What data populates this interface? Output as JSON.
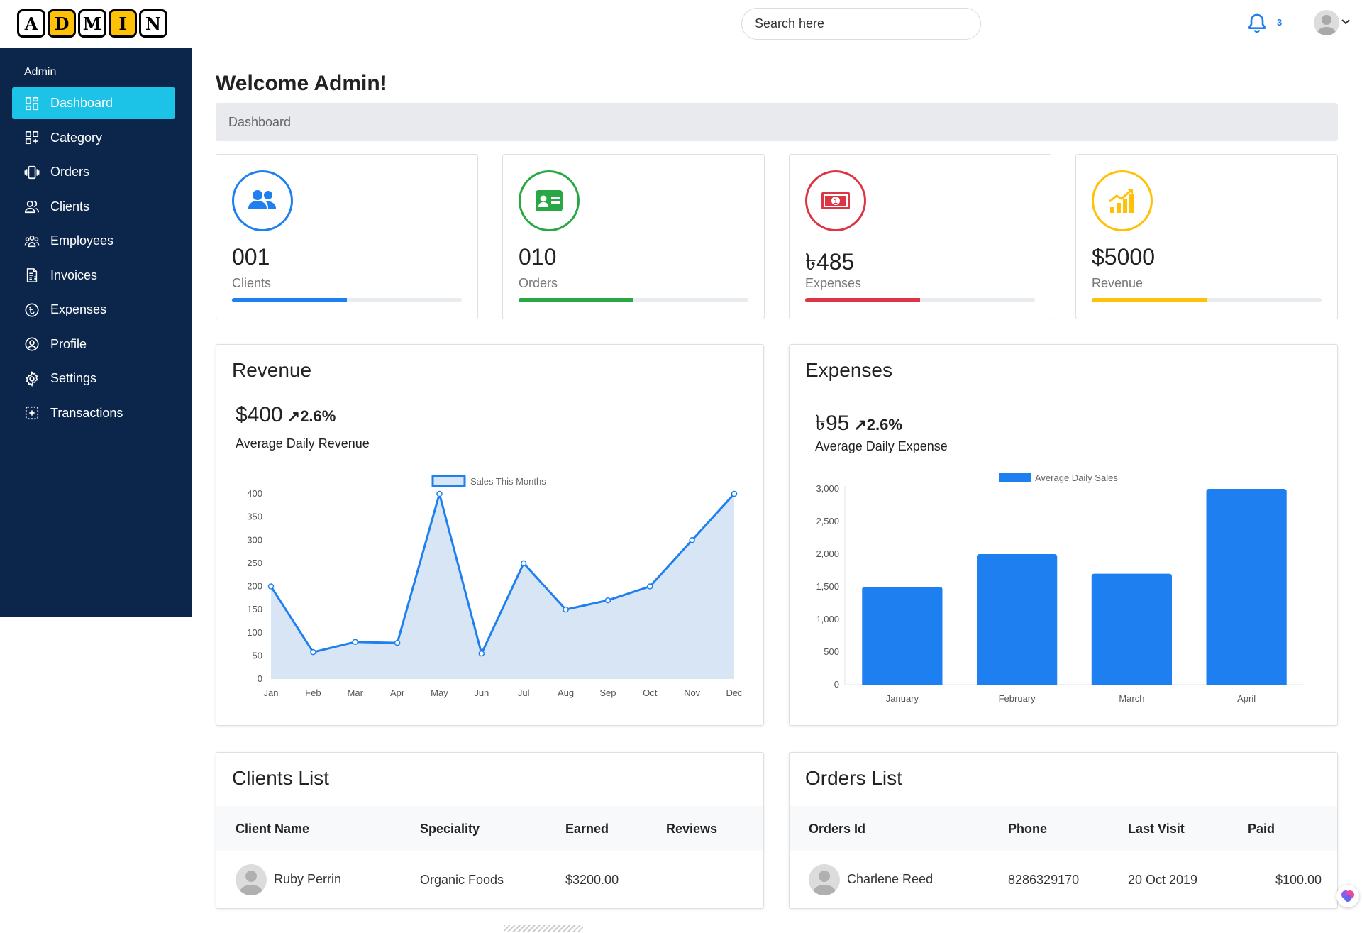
{
  "logo": {
    "letters": [
      "A",
      "D",
      "M",
      "I",
      "N"
    ]
  },
  "search": {
    "placeholder": "Search here"
  },
  "notifications": {
    "count": "3"
  },
  "sidebar": {
    "title": "Admin",
    "items": [
      {
        "label": "Dashboard",
        "icon": "dashboard-icon",
        "active": true
      },
      {
        "label": "Category",
        "icon": "category-icon"
      },
      {
        "label": "Orders",
        "icon": "orders-icon"
      },
      {
        "label": "Clients",
        "icon": "clients-icon"
      },
      {
        "label": "Employees",
        "icon": "employees-icon"
      },
      {
        "label": "Invoices",
        "icon": "invoices-icon"
      },
      {
        "label": "Expenses",
        "icon": "expenses-icon"
      },
      {
        "label": "Profile",
        "icon": "profile-icon"
      },
      {
        "label": "Settings",
        "icon": "gear-icon"
      },
      {
        "label": "Transactions",
        "icon": "transactions-icon"
      }
    ]
  },
  "main": {
    "title": "Welcome Admin!",
    "breadcrumb": "Dashboard"
  },
  "stats": [
    {
      "value": "001",
      "label": "Clients",
      "color": "#1e7ff0",
      "icon": "users-icon",
      "progress": 0.5
    },
    {
      "value": "010",
      "label": "Orders",
      "color": "#28a745",
      "icon": "id-card-icon",
      "progress": 0.5
    },
    {
      "value": "৳485",
      "label": "Expenses",
      "color": "#dc3545",
      "icon": "money-icon",
      "progress": 0.5
    },
    {
      "value": "$5000",
      "label": "Revenue",
      "color": "#ffc107",
      "icon": "growth-chart-icon",
      "progress": 0.5
    }
  ],
  "revenue": {
    "title": "Revenue",
    "amount": "$400",
    "change": "2.6%",
    "caption": "Average Daily Revenue"
  },
  "expenses": {
    "title": "Expenses",
    "amount": "৳95",
    "change": "2.6%",
    "caption": "Average Daily Expense"
  },
  "chart_data": [
    {
      "type": "area",
      "categories": [
        "Jan",
        "Feb",
        "Mar",
        "Apr",
        "May",
        "Jun",
        "Jul",
        "Aug",
        "Sep",
        "Oct",
        "Nov",
        "Dec"
      ],
      "series": [
        {
          "name": "Sales This Months",
          "values": [
            200,
            58,
            80,
            78,
            400,
            55,
            250,
            150,
            170,
            200,
            300,
            400
          ]
        }
      ],
      "ylim": [
        0,
        400
      ],
      "yticks": [
        0,
        50,
        100,
        150,
        200,
        250,
        300,
        350,
        400
      ],
      "legend": "top-center",
      "color": "#1e7ff0",
      "fill": "#d8e5f5"
    },
    {
      "type": "bar",
      "categories": [
        "January",
        "February",
        "March",
        "April"
      ],
      "series": [
        {
          "name": "Average Daily Sales",
          "values": [
            1500,
            2000,
            1700,
            3000
          ]
        }
      ],
      "ylim": [
        0,
        3000
      ],
      "yticks": [
        "0",
        "500",
        "1,000",
        "1,500",
        "2,000",
        "2,500",
        "3,000"
      ],
      "legend": "top-center",
      "color": "#1e7ff0"
    }
  ],
  "clients_list": {
    "title": "Clients List",
    "columns": [
      "Client Name",
      "Speciality",
      "Earned",
      "Reviews"
    ],
    "rows": [
      {
        "name": "Ruby Perrin",
        "speciality": "Organic Foods",
        "earned": "$3200.00",
        "reviews": ""
      }
    ]
  },
  "orders_list": {
    "title": "Orders List",
    "columns": [
      "Orders Id",
      "Phone",
      "Last Visit",
      "Paid"
    ],
    "rows": [
      {
        "name": "Charlene Reed",
        "phone": "8286329170",
        "last_visit": "20 Oct 2019",
        "paid": "$100.00"
      }
    ]
  }
}
